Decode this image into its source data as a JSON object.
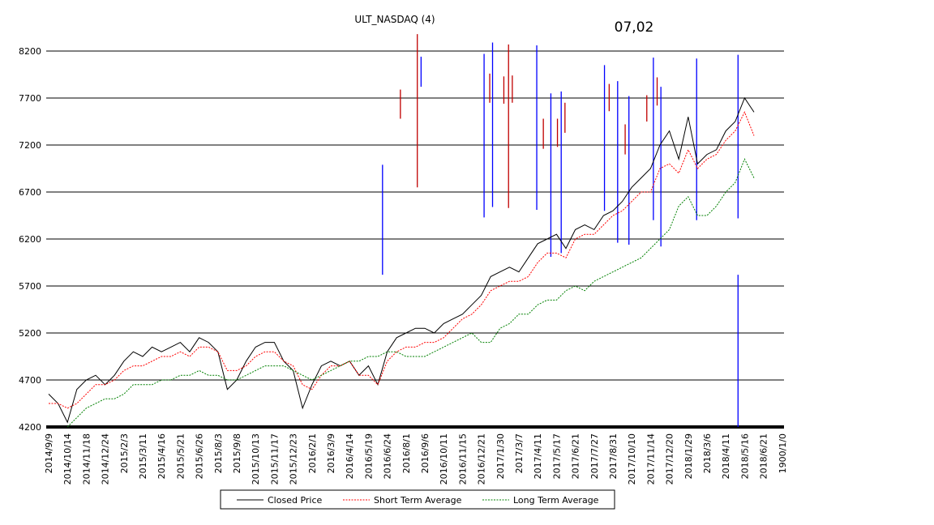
{
  "chart_data": {
    "type": "line",
    "title": "ULT_NASDAQ (4)",
    "annotation": "07,02",
    "categories": [
      "2014/9/9",
      null,
      "2014/10/14",
      null,
      "2014/11/18",
      null,
      "2014/12/24",
      null,
      "2015/2/3",
      null,
      "2015/3/11",
      null,
      "2015/4/16",
      null,
      "2015/5/21",
      null,
      "2015/6/26",
      null,
      "2015/8/3",
      null,
      "2015/9/8",
      null,
      "2015/10/13",
      null,
      "2015/11/17",
      null,
      "2015/12/23",
      null,
      "2016/2/1",
      null,
      "2016/3/9",
      null,
      "2016/4/14",
      null,
      "2016/5/19",
      null,
      "2016/6/24",
      null,
      "2016/8/1",
      null,
      "2016/9/6",
      null,
      "2016/10/11",
      null,
      "2016/11/15",
      null,
      "2016/12/21",
      null,
      "2017/1/30",
      null,
      "2017/3/7",
      null,
      "2017/4/11",
      null,
      "2017/5/17",
      null,
      "2017/6/21",
      null,
      "2017/7/27",
      null,
      "2017/8/31",
      null,
      "2017/10/10",
      null,
      "2017/11/14",
      null,
      "2017/12/20",
      null,
      "2018/1/29",
      null,
      "2018/3/6",
      null,
      "2018/4/11",
      null,
      "2018/5/16",
      null,
      "2018/6/21",
      null,
      "1900/1/0"
    ],
    "series": [
      {
        "name": "Closed Price",
        "color": "#000000",
        "dash": false,
        "values": [
          4550,
          4450,
          4250,
          4600,
          4700,
          4750,
          4650,
          4750,
          4900,
          5000,
          4950,
          5050,
          5000,
          5050,
          5100,
          5000,
          5150,
          5100,
          5000,
          4600,
          4700,
          4900,
          5050,
          5100,
          5100,
          4900,
          4800,
          4400,
          4650,
          4850,
          4900,
          4850,
          4900,
          4750,
          4850,
          4650,
          5000,
          5150,
          5200,
          5250,
          5250,
          5200,
          5300,
          5350,
          5400,
          5500,
          5600,
          5800,
          5850,
          5900,
          5850,
          6000,
          6150,
          6200,
          6250,
          6100,
          6300,
          6350,
          6300,
          6450,
          6500,
          6600,
          6750,
          6850,
          6950,
          7200,
          7350,
          7050,
          7500,
          7000,
          7100,
          7150,
          7350,
          7450,
          7700,
          7550,
          null,
          null,
          null
        ]
      },
      {
        "name": "Short Term Average",
        "color": "#ff0000",
        "dash": true,
        "values": [
          4450,
          4450,
          4400,
          4450,
          4550,
          4650,
          4650,
          4700,
          4800,
          4850,
          4850,
          4900,
          4950,
          4950,
          5000,
          4950,
          5050,
          5050,
          5000,
          4800,
          4800,
          4850,
          4950,
          5000,
          5000,
          4900,
          4850,
          4650,
          4600,
          4750,
          4850,
          4850,
          4900,
          4750,
          4750,
          4650,
          4900,
          5000,
          5050,
          5050,
          5100,
          5100,
          5150,
          5250,
          5350,
          5400,
          5500,
          5650,
          5700,
          5750,
          5750,
          5800,
          5950,
          6050,
          6050,
          6000,
          6200,
          6250,
          6250,
          6350,
          6450,
          6500,
          6600,
          6700,
          6700,
          6950,
          7000,
          6900,
          7150,
          6950,
          7050,
          7100,
          7250,
          7350,
          7550,
          7300,
          null,
          null,
          null
        ]
      },
      {
        "name": "Long Term Average",
        "color": "#008000",
        "dash": true,
        "values": [
          null,
          null,
          4200,
          4300,
          4400,
          4450,
          4500,
          4500,
          4550,
          4650,
          4650,
          4650,
          4700,
          4700,
          4750,
          4750,
          4800,
          4750,
          4750,
          4700,
          4700,
          4750,
          4800,
          4850,
          4850,
          4850,
          4800,
          4750,
          4700,
          4750,
          4800,
          4850,
          4900,
          4900,
          4950,
          4950,
          5000,
          5000,
          4950,
          4950,
          4950,
          5000,
          5050,
          5100,
          5150,
          5200,
          5100,
          5100,
          5250,
          5300,
          5400,
          5400,
          5500,
          5550,
          5550,
          5650,
          5700,
          5650,
          5750,
          5800,
          5850,
          5900,
          5950,
          6000,
          6100,
          6200,
          6300,
          6550,
          6650,
          6450,
          6450,
          6550,
          6700,
          6800,
          7050,
          6850,
          null,
          null,
          null
        ]
      }
    ],
    "signals": [
      {
        "color": "#0000ff",
        "x": 35.5,
        "low": 5820,
        "high": 6990
      },
      {
        "color": "#c00000",
        "x": 37.4,
        "low": 7480,
        "high": 7790
      },
      {
        "color": "#c00000",
        "x": 39.2,
        "low": 6750,
        "high": 8380
      },
      {
        "color": "#0000ff",
        "x": 39.6,
        "low": 7820,
        "high": 8140
      },
      {
        "color": "#0000ff",
        "x": 46.3,
        "low": 6430,
        "high": 8170
      },
      {
        "color": "#c00000",
        "x": 46.9,
        "low": 7650,
        "high": 7960
      },
      {
        "color": "#0000ff",
        "x": 47.2,
        "low": 6540,
        "high": 8290
      },
      {
        "color": "#c00000",
        "x": 48.4,
        "low": 7640,
        "high": 7930
      },
      {
        "color": "#c00000",
        "x": 48.9,
        "low": 6530,
        "high": 8270
      },
      {
        "color": "#c00000",
        "x": 49.3,
        "low": 7650,
        "high": 7940
      },
      {
        "color": "#0000ff",
        "x": 51.9,
        "low": 6510,
        "high": 8260
      },
      {
        "color": "#c00000",
        "x": 52.6,
        "low": 7160,
        "high": 7480
      },
      {
        "color": "#0000ff",
        "x": 53.4,
        "low": 6010,
        "high": 7750
      },
      {
        "color": "#c00000",
        "x": 54.1,
        "low": 7180,
        "high": 7480
      },
      {
        "color": "#0000ff",
        "x": 54.5,
        "low": 6050,
        "high": 7770
      },
      {
        "color": "#c00000",
        "x": 54.9,
        "low": 7330,
        "high": 7650
      },
      {
        "color": "#0000ff",
        "x": 59.1,
        "low": 6500,
        "high": 8050
      },
      {
        "color": "#c00000",
        "x": 59.6,
        "low": 7560,
        "high": 7850
      },
      {
        "color": "#0000ff",
        "x": 60.5,
        "low": 6160,
        "high": 7880
      },
      {
        "color": "#c00000",
        "x": 61.3,
        "low": 7100,
        "high": 7420
      },
      {
        "color": "#0000ff",
        "x": 61.7,
        "low": 6140,
        "high": 7720
      },
      {
        "color": "#c00000",
        "x": 63.6,
        "low": 7450,
        "high": 7730
      },
      {
        "color": "#0000ff",
        "x": 64.3,
        "low": 6400,
        "high": 8130
      },
      {
        "color": "#c00000",
        "x": 64.7,
        "low": 7620,
        "high": 7920
      },
      {
        "color": "#0000ff",
        "x": 65.1,
        "low": 6120,
        "high": 7820
      },
      {
        "color": "#0000ff",
        "x": 68.9,
        "low": 6400,
        "high": 8120
      },
      {
        "color": "#0000ff",
        "x": 73.3,
        "low": 6420,
        "high": 8160
      },
      {
        "color": "#0000ff",
        "x": 73.3,
        "low": 4200,
        "high": 5820
      }
    ],
    "ylim": [
      4200,
      8200
    ],
    "yticks": [
      4200,
      4700,
      5200,
      5700,
      6200,
      6700,
      7200,
      7700,
      8200
    ],
    "grid": true
  }
}
